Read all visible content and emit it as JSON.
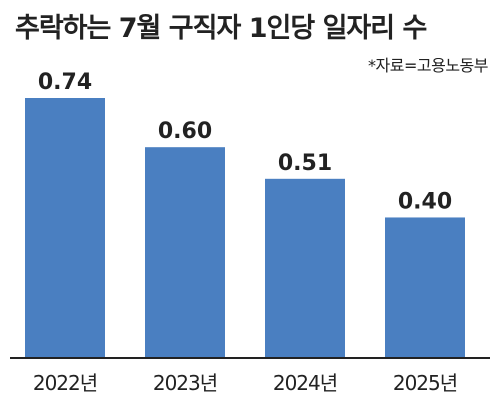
{
  "title": "추락하는 7월 구직자 1인당 일자리 수",
  "source": "*자료=고용노동부",
  "colors": {
    "bar": "#4a7fc1",
    "text": "#222222",
    "axis": "#222222"
  },
  "chart_data": {
    "type": "bar",
    "title": "추락하는 7월 구직자 1인당 일자리 수",
    "categories": [
      "2022년",
      "2023년",
      "2024년",
      "2025년"
    ],
    "values": [
      0.74,
      0.6,
      0.51,
      0.4
    ],
    "value_labels": [
      "0.74",
      "0.60",
      "0.51",
      "0.40"
    ],
    "ylim": [
      0,
      0.74
    ],
    "grid": false,
    "legend": "none"
  }
}
